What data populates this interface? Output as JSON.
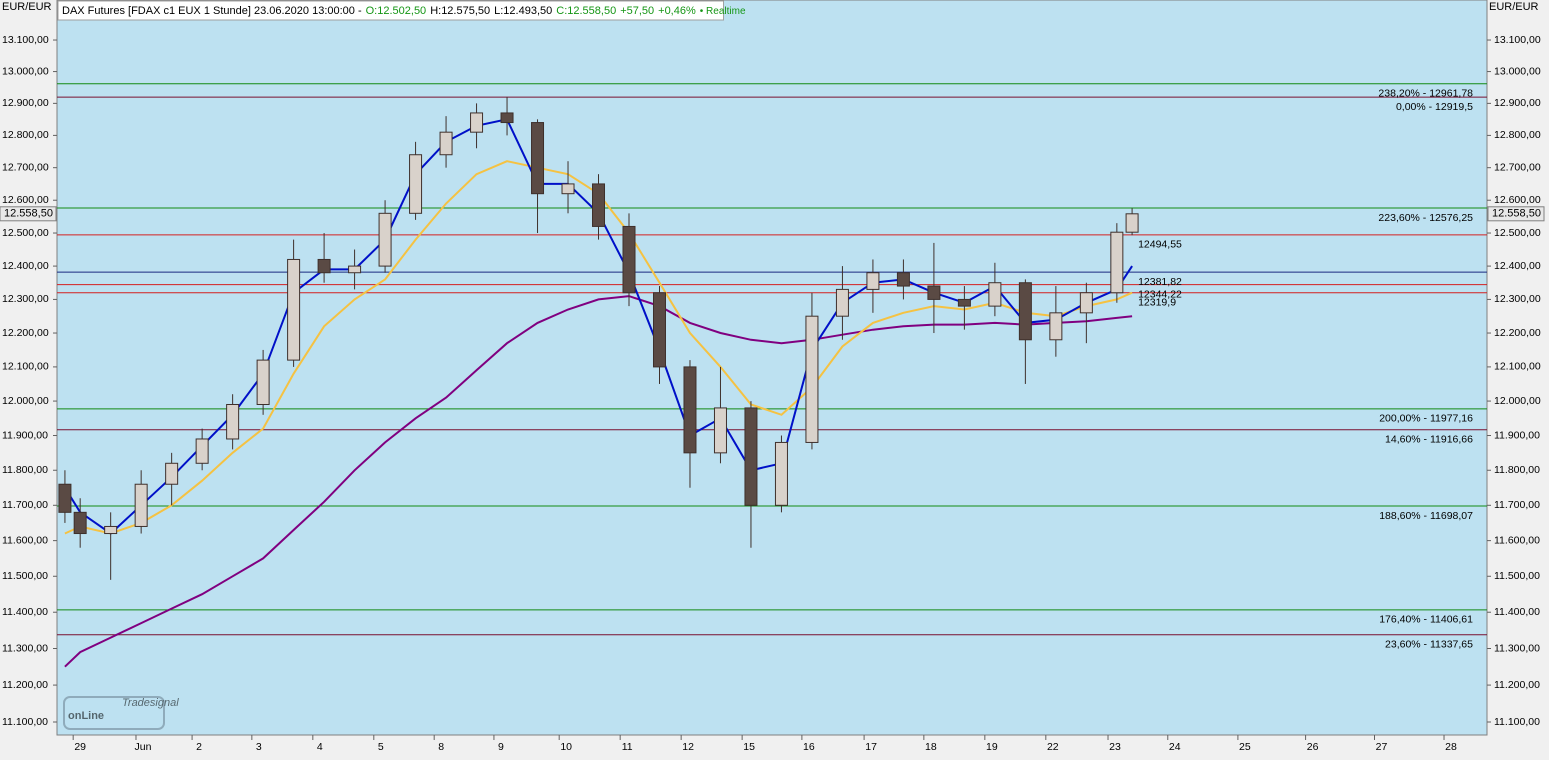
{
  "chart_data": {
    "type": "candlestick",
    "title": "DAX Futures [FDAX c1 EUX 1 Stunde] 23.06.2020 13:00:00 -",
    "quote": [
      "O:12.502,50",
      "H:12.575,50",
      "L:12.493,50",
      "C:12.558,50",
      "+57,50",
      "+0,46%",
      "• Realtime"
    ],
    "currency": "EUR/EUR",
    "logo": [
      "Tradesignal",
      "onLine"
    ],
    "log_scale": true,
    "xlim": [
      -0.38,
      23.07
    ],
    "ylim": [
      11065,
      13228
    ],
    "xticks": [
      {
        "value": 0,
        "label": "29"
      },
      {
        "value": 1.03,
        "label": "Jun"
      },
      {
        "value": 1.95,
        "label": "2"
      },
      {
        "value": 2.93,
        "label": "3"
      },
      {
        "value": 3.93,
        "label": "4"
      },
      {
        "value": 4.93,
        "label": "5"
      },
      {
        "value": 5.92,
        "label": "8"
      },
      {
        "value": 6.9,
        "label": "9"
      },
      {
        "value": 7.97,
        "label": "10"
      },
      {
        "value": 8.97,
        "label": "11"
      },
      {
        "value": 9.97,
        "label": "12"
      },
      {
        "value": 10.97,
        "label": "15"
      },
      {
        "value": 11.95,
        "label": "16"
      },
      {
        "value": 12.97,
        "label": "17"
      },
      {
        "value": 13.95,
        "label": "18"
      },
      {
        "value": 14.95,
        "label": "19"
      },
      {
        "value": 15.95,
        "label": "22"
      },
      {
        "value": 16.97,
        "label": "23"
      },
      {
        "value": 17.95,
        "label": "24"
      },
      {
        "value": 19.1,
        "label": "25"
      },
      {
        "value": 20.21,
        "label": "26"
      },
      {
        "value": 21.34,
        "label": "27"
      },
      {
        "value": 22.48,
        "label": "28"
      }
    ],
    "yticks": [
      {
        "value": 11100,
        "label": "11.100,00"
      },
      {
        "value": 11200,
        "label": "11.200,00"
      },
      {
        "value": 11300,
        "label": "11.300,00"
      },
      {
        "value": 11400,
        "label": "11.400,00"
      },
      {
        "value": 11500,
        "label": "11.500,00"
      },
      {
        "value": 11600,
        "label": "11.600,00"
      },
      {
        "value": 11700,
        "label": "11.700,00"
      },
      {
        "value": 11800,
        "label": "11.800,00"
      },
      {
        "value": 11900,
        "label": "11.900,00"
      },
      {
        "value": 12000,
        "label": "12.000,00"
      },
      {
        "value": 12100,
        "label": "12.100,00"
      },
      {
        "value": 12200,
        "label": "12.200,00"
      },
      {
        "value": 12300,
        "label": "12.300,00"
      },
      {
        "value": 12400,
        "label": "12.400,00"
      },
      {
        "value": 12500,
        "label": "12.500,00"
      },
      {
        "value": 12600,
        "label": "12.600,00"
      },
      {
        "value": 12700,
        "label": "12.700,00"
      },
      {
        "value": 12800,
        "label": "12.800,00"
      },
      {
        "value": 12900,
        "label": "12.900,00"
      },
      {
        "value": 13000,
        "label": "13.000,00"
      },
      {
        "value": 13100,
        "label": "13.100,00"
      }
    ],
    "last_price": {
      "value": 12558.5,
      "label": "12.558,50"
    },
    "x": [
      -0.25,
      0,
      0.5,
      1,
      1.5,
      2,
      2.5,
      3,
      3.5,
      4,
      4.5,
      5,
      5.5,
      6,
      6.5,
      7,
      7.5,
      8,
      8.5,
      9,
      9.5,
      10,
      10.5,
      11,
      11.5,
      12,
      12.5,
      13,
      13.5,
      14,
      14.5,
      15,
      15.5,
      16,
      16.5,
      17,
      17.25
    ],
    "open": [
      11760,
      11680,
      11620,
      11640,
      11760,
      11820,
      11890,
      11990,
      12120,
      12420,
      12380,
      12400,
      12560,
      12740,
      12810,
      12870,
      12840,
      12620,
      12650,
      12520,
      12320,
      12100,
      11850,
      11980,
      11700,
      11880,
      12250,
      12330,
      12380,
      12340,
      12300,
      12280,
      12350,
      12180,
      12260,
      12320,
      12502.5
    ],
    "high": [
      11800,
      11720,
      11680,
      11800,
      11850,
      11920,
      12020,
      12150,
      12480,
      12500,
      12450,
      12600,
      12780,
      12860,
      12900,
      12920,
      12850,
      12720,
      12680,
      12560,
      12340,
      12120,
      12100,
      12000,
      11900,
      12320,
      12400,
      12420,
      12420,
      12470,
      12340,
      12410,
      12360,
      12340,
      12350,
      12530,
      12575.5
    ],
    "low": [
      11650,
      11580,
      11490,
      11620,
      11700,
      11800,
      11860,
      11960,
      12100,
      12350,
      12330,
      12380,
      12540,
      12700,
      12760,
      12800,
      12500,
      12560,
      12480,
      12280,
      12050,
      11750,
      11820,
      11580,
      11680,
      11860,
      12180,
      12260,
      12300,
      12200,
      12210,
      12250,
      12050,
      12130,
      12170,
      12290,
      12493.5
    ],
    "close": [
      11680,
      11620,
      11640,
      11760,
      11820,
      11890,
      11990,
      12120,
      12420,
      12380,
      12400,
      12560,
      12740,
      12810,
      12870,
      12840,
      12620,
      12650,
      12520,
      12320,
      12100,
      11850,
      11980,
      11700,
      11880,
      12250,
      12330,
      12380,
      12340,
      12300,
      12280,
      12350,
      12180,
      12260,
      12320,
      12502.5,
      12558.5
    ],
    "up_color": "#d9d2cb",
    "down_color": "#5a4a44",
    "series": [
      {
        "color": "#800080",
        "values": [
          11250,
          11290,
          11330,
          11370,
          11410,
          11450,
          11500,
          11550,
          11630,
          11710,
          11800,
          11880,
          11950,
          12010,
          12090,
          12170,
          12230,
          12270,
          12300,
          12310,
          12280,
          12230,
          12200,
          12180,
          12170,
          12180,
          12195,
          12210,
          12220,
          12225,
          12225,
          12230,
          12225,
          12230,
          12235,
          12245,
          12250
        ]
      },
      {
        "color": "#f5c242",
        "values": [
          11620,
          11640,
          11620,
          11650,
          11700,
          11770,
          11850,
          11920,
          12080,
          12220,
          12300,
          12360,
          12480,
          12590,
          12680,
          12720,
          12700,
          12680,
          12620,
          12500,
          12350,
          12200,
          12100,
          11990,
          11960,
          12040,
          12160,
          12230,
          12260,
          12280,
          12270,
          12290,
          12260,
          12250,
          12280,
          12300,
          12320
        ]
      },
      {
        "color": "#0010c8",
        "values": [
          11750,
          11680,
          11620,
          11700,
          11780,
          11870,
          11960,
          12080,
          12320,
          12390,
          12390,
          12480,
          12680,
          12780,
          12830,
          12850,
          12650,
          12650,
          12560,
          12380,
          12150,
          11900,
          11950,
          11800,
          11820,
          12150,
          12290,
          12350,
          12360,
          12320,
          12290,
          12340,
          12230,
          12240,
          12290,
          12330,
          12400
        ]
      }
    ],
    "fib_levels": [
      {
        "value": 12961.78,
        "label": "238,20% - 12961,78",
        "color": "#138a13"
      },
      {
        "value": 12919.5,
        "label": "0,00% - 12919,5",
        "color": "#7a1030"
      },
      {
        "value": 12576.25,
        "label": "223,60% - 12576,25",
        "color": "#138a13"
      },
      {
        "value": 11977.16,
        "label": "200,00% - 11977,16",
        "color": "#138a13"
      },
      {
        "value": 11916.66,
        "label": "14,60% - 11916,66",
        "color": "#7a1030"
      },
      {
        "value": 11698.07,
        "label": "188,60% - 11698,07",
        "color": "#138a13"
      },
      {
        "value": 11406.61,
        "label": "176,40% - 11406,61",
        "color": "#138a13"
      },
      {
        "value": 11337.65,
        "label": "23,60% - 11337,65",
        "color": "#7a1030"
      }
    ],
    "price_levels": [
      {
        "value": 12494.55,
        "label": "12494,55",
        "color": "#d42020"
      },
      {
        "value": 12381.82,
        "label": "12381,82",
        "color": "#1a2a80"
      },
      {
        "value": 12344.22,
        "label": "12344,22",
        "color": "#d42020"
      },
      {
        "value": 12319.9,
        "label": "12319,9",
        "color": "#d42020"
      }
    ]
  }
}
